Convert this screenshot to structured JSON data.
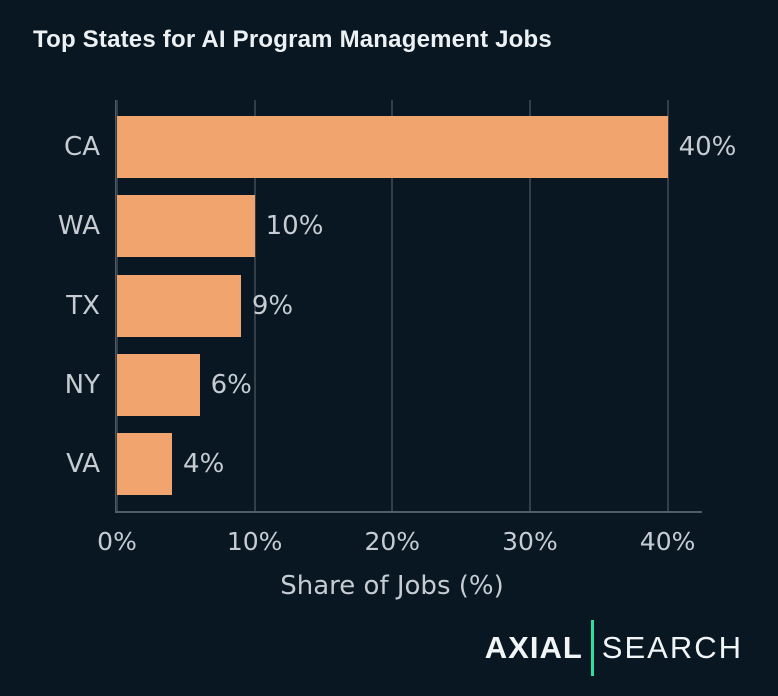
{
  "title": "Top States for AI Program Management Jobs",
  "chart_data": {
    "type": "bar",
    "orientation": "horizontal",
    "title": "Top States for AI Program Management Jobs",
    "categories": [
      "CA",
      "WA",
      "TX",
      "NY",
      "VA"
    ],
    "values": [
      40,
      10,
      9,
      6,
      4
    ],
    "value_labels": [
      "40%",
      "10%",
      "9%",
      "6%",
      "4%"
    ],
    "xlabel": "Share of Jobs (%)",
    "ylabel": "",
    "xlim": [
      0,
      42.5
    ],
    "xticks": [
      0,
      10,
      20,
      30,
      40
    ],
    "xtick_labels": [
      "0%",
      "10%",
      "20%",
      "30%",
      "40%"
    ],
    "grid": "vertical-only",
    "legend": "none",
    "bar_color": "#F2A46E"
  },
  "logo": {
    "primary": "AXIAL",
    "secondary": "SEARCH",
    "divider_color": "#2EE09D"
  },
  "colors": {
    "background": "#081722",
    "bar": "#F2A46E",
    "title_text": "#EDF1F4",
    "label_text": "#C6CCD2",
    "gridline": "#323F49",
    "spine": "#4E5D66",
    "logo_text": "#F2F5F6",
    "logo_divider": "#2EE09D"
  }
}
